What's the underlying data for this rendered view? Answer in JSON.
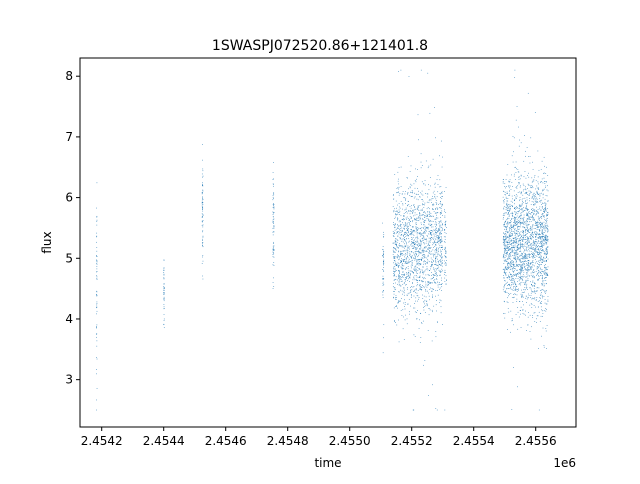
{
  "chart_data": {
    "type": "scatter",
    "title": "1SWASPJ072520.86+121401.8",
    "xlabel": "time",
    "ylabel": "flux",
    "x_offset_label": "1e6",
    "xlim": [
      2454130,
      2455730
    ],
    "ylim": [
      2.22,
      8.3
    ],
    "x_ticks": [
      2454200,
      2454400,
      2454600,
      2454800,
      2455000,
      2455200,
      2455400,
      2455600
    ],
    "x_tick_labels": [
      "2.4542",
      "2.4544",
      "2.4546",
      "2.4548",
      "2.4550",
      "2.4552",
      "2.4554",
      "2.4556"
    ],
    "y_ticks": [
      3,
      4,
      5,
      6,
      7,
      8
    ],
    "y_tick_labels": [
      "3",
      "4",
      "5",
      "6",
      "7",
      "8"
    ],
    "grid": false,
    "marker_color": "#1f77b4",
    "series": [
      {
        "clusters": [
          {
            "t_min": 2454183,
            "t_max": 2454185,
            "flux_mean": 4.5,
            "flux_sd": 0.9,
            "n": 60
          },
          {
            "t_min": 2454400,
            "t_max": 2454402,
            "flux_mean": 4.45,
            "flux_sd": 0.3,
            "n": 45
          },
          {
            "t_min": 2454524,
            "t_max": 2454527,
            "flux_mean": 5.8,
            "flux_sd": 0.4,
            "n": 70
          },
          {
            "t_min": 2454752,
            "t_max": 2454756,
            "flux_mean": 5.5,
            "flux_sd": 0.4,
            "n": 70
          },
          {
            "t_min": 2455106,
            "t_max": 2455110,
            "flux_mean": 4.9,
            "flux_sd": 0.3,
            "n": 50
          },
          {
            "t_min": 2455140,
            "t_max": 2455300,
            "flux_mean": 5.2,
            "flux_sd": 0.55,
            "n": 1700
          },
          {
            "t_min": 2455305,
            "t_max": 2455312,
            "flux_mean": 5.2,
            "flux_sd": 0.45,
            "n": 60
          },
          {
            "t_min": 2455495,
            "t_max": 2455640,
            "flux_mean": 5.25,
            "flux_sd": 0.55,
            "n": 2200
          }
        ]
      }
    ]
  }
}
